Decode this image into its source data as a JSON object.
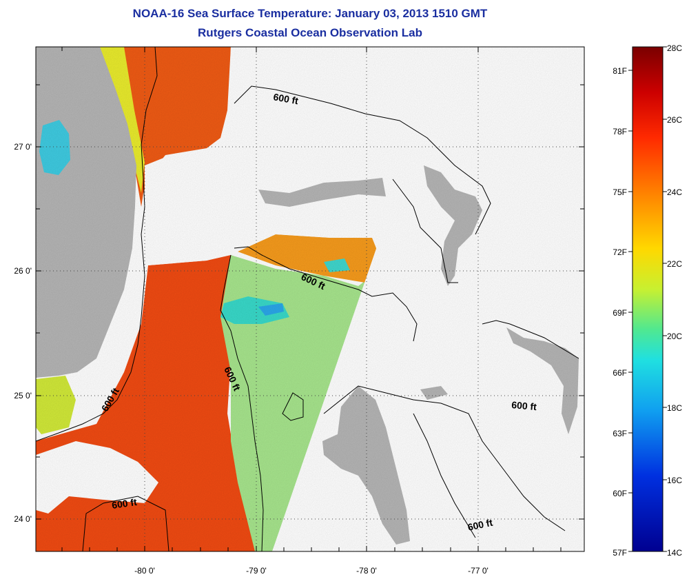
{
  "title": {
    "line1": "NOAA-16 Sea Surface Temperature:  January 03, 2013 1510 GMT",
    "line2": "Rutgers Coastal Ocean Observation Lab"
  },
  "map": {
    "lon_ticks": [
      "-80 0'",
      "-79 0'",
      "-78 0'",
      "-77 0'"
    ],
    "lat_ticks": [
      "27 0'",
      "26 0'",
      "25 0'",
      "24 0'"
    ],
    "contour_labels": [
      "600 ft",
      "600 ft",
      "600 ft",
      "600 ft",
      "600 ft",
      "600 ft"
    ]
  },
  "colorbar": {
    "celsius_labels": [
      "28C",
      "26C",
      "24C",
      "22C",
      "20C",
      "18C",
      "16C",
      "14C"
    ],
    "fahrenheit_labels": [
      "81F",
      "78F",
      "75F",
      "72F",
      "69F",
      "66F",
      "63F",
      "60F",
      "57F"
    ]
  },
  "colors": {
    "title": "#1a2ea0",
    "land": "#b4b4b4",
    "warm": "#ef4a12",
    "mid": "#9ee69a",
    "cool": "#2fd3d8"
  }
}
